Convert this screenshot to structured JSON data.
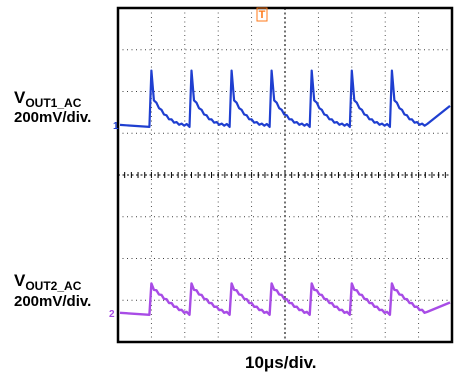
{
  "labels": {
    "ch1_name": "V",
    "ch1_sub": "OUT1_AC",
    "ch1_scale": "200mV/div.",
    "ch2_name": "V",
    "ch2_sub": "OUT2_AC",
    "ch2_scale": "200mV/div.",
    "time_scale": "10μs/div.",
    "ch1_marker": "1",
    "ch2_marker": "2",
    "trigger_marker": "T"
  },
  "colors": {
    "ch1": "#1f3fd0",
    "ch2": "#a84ce6",
    "trigger": "#ff7a1a",
    "grid": "#000000",
    "background": "#ffffff"
  },
  "chart_data": {
    "type": "line",
    "title": "",
    "xlabel": "10μs/div.",
    "grid": true,
    "divisions": {
      "x": 10,
      "y": 8
    },
    "x": [
      0,
      0.4,
      1.0,
      1.6,
      2.0,
      2.3,
      3.0,
      3.6,
      4.0,
      4.3,
      5.0,
      5.6,
      6.0,
      6.3,
      7.0,
      7.6,
      8.0,
      8.3,
      9.0,
      9.6,
      10.0
    ],
    "series": [
      {
        "name": "VOUT1_AC",
        "color": "#1f3fd0",
        "switch_times": [
          1.0,
          2.2,
          3.4,
          4.6,
          5.8,
          7.0,
          8.2
        ],
        "values": [
          0,
          0,
          0,
          2.0,
          1.0,
          0.2,
          0,
          2.0,
          1.0,
          0.2,
          0,
          2.0,
          1.0,
          0.2,
          0,
          2.0,
          1.0,
          0.2,
          0,
          2.0,
          1.0
        ]
      },
      {
        "name": "VOUT2_AC",
        "color": "#a84ce6",
        "switch_times": [
          1.0,
          2.2,
          3.4,
          4.6,
          5.8,
          7.0,
          8.2
        ],
        "values": [
          0,
          0,
          0,
          1.0,
          0.8,
          0.3,
          0,
          1.0,
          0.8,
          0.3,
          0,
          1.0,
          0.8,
          0.3,
          0,
          1.0,
          0.8,
          0.3,
          0,
          1.0,
          0.8
        ]
      }
    ]
  }
}
